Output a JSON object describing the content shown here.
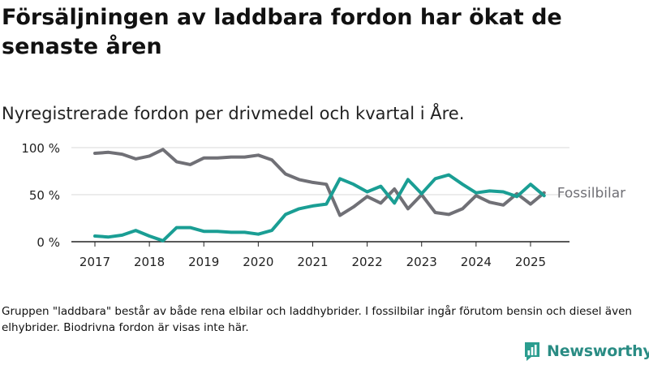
{
  "title": "Försäljningen av laddbara fordon har ökat de senaste åren",
  "subtitle": "Nyregistrerade fordon per drivmedel och kvartal i Åre.",
  "note": "Gruppen \"laddbara\" består av både rena elbilar och laddhybrider. I fossilbilar ingår förutom bensin och diesel även elhybrider. Biodrivna fordon är visas inte här.",
  "brand": {
    "name": "Newsworthy",
    "color": "#2a9d8f",
    "icon": "newsworthy-logo-icon"
  },
  "chart_data": {
    "type": "line",
    "x": [
      "2017Q1",
      "2017Q2",
      "2017Q3",
      "2017Q4",
      "2018Q1",
      "2018Q2",
      "2018Q3",
      "2018Q4",
      "2019Q1",
      "2019Q2",
      "2019Q3",
      "2019Q4",
      "2020Q1",
      "2020Q2",
      "2020Q3",
      "2020Q4",
      "2021Q1",
      "2021Q2",
      "2021Q3",
      "2021Q4",
      "2022Q1",
      "2022Q2",
      "2022Q3",
      "2022Q4",
      "2023Q1",
      "2023Q2",
      "2023Q3",
      "2023Q4",
      "2024Q1",
      "2024Q2",
      "2024Q3",
      "2024Q4",
      "2025Q1",
      "2025Q2"
    ],
    "x_ticks": [
      "2017",
      "2018",
      "2019",
      "2020",
      "2021",
      "2022",
      "2023",
      "2024",
      "2025"
    ],
    "y_ticks": [
      "0 %",
      "50 %",
      "100 %"
    ],
    "ylim": [
      0,
      100
    ],
    "grid": true,
    "series": [
      {
        "name": "Fossilbilar",
        "color": "#707076",
        "values": [
          94,
          95,
          93,
          88,
          91,
          98,
          85,
          82,
          89,
          89,
          90,
          90,
          92,
          87,
          72,
          66,
          63,
          61,
          28,
          37,
          48,
          41,
          56,
          35,
          50,
          31,
          29,
          35,
          49,
          42,
          39,
          51,
          40,
          52
        ]
      },
      {
        "name": "",
        "color": "#1a9e94",
        "values": [
          6,
          5,
          7,
          12,
          6,
          1,
          15,
          15,
          11,
          11,
          10,
          10,
          8,
          12,
          29,
          35,
          38,
          40,
          67,
          61,
          53,
          59,
          41,
          66,
          51,
          67,
          71,
          61,
          52,
          54,
          53,
          48,
          61,
          49
        ]
      }
    ],
    "labels": [
      {
        "series": 0,
        "text": "Fossilbilar"
      }
    ]
  }
}
